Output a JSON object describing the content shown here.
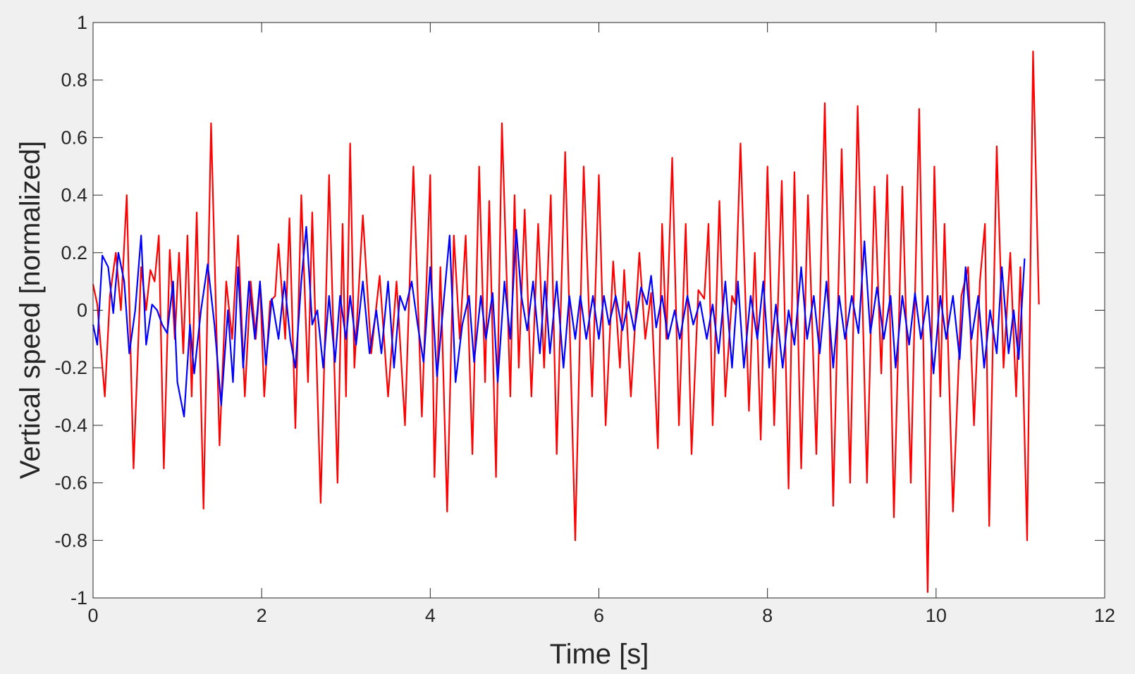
{
  "chart_data": {
    "type": "line",
    "xlabel": "Time [s]",
    "ylabel": "Vertical speed [normalized]",
    "xlim": [
      0,
      12
    ],
    "xticks": [
      0,
      2,
      4,
      6,
      8,
      10,
      12
    ],
    "ylim": [
      -1,
      1
    ],
    "yticks": [
      -1,
      -0.8,
      -0.6,
      -0.4,
      -0.2,
      0,
      0.2,
      0.4,
      0.6,
      0.8,
      1
    ],
    "series": [
      {
        "color": "#ff0000",
        "x": [
          0,
          0.05,
          0.14,
          0.2,
          0.27,
          0.33,
          0.4,
          0.48,
          0.57,
          0.63,
          0.68,
          0.73,
          0.78,
          0.84,
          0.91,
          0.97,
          1.02,
          1.07,
          1.12,
          1.17,
          1.23,
          1.31,
          1.4,
          1.5,
          1.58,
          1.65,
          1.72,
          1.8,
          1.87,
          1.93,
          1.98,
          2.03,
          2.1,
          2.16,
          2.2,
          2.28,
          2.33,
          2.4,
          2.47,
          2.55,
          2.6,
          2.7,
          2.8,
          2.9,
          2.96,
          3.0,
          3.05,
          3.1,
          3.2,
          3.3,
          3.4,
          3.5,
          3.6,
          3.7,
          3.8,
          3.9,
          4.0,
          4.05,
          4.12,
          4.2,
          4.28,
          4.35,
          4.42,
          4.5,
          4.58,
          4.65,
          4.7,
          4.78,
          4.85,
          4.95,
          5.0,
          5.05,
          5.12,
          5.2,
          5.28,
          5.35,
          5.43,
          5.5,
          5.6,
          5.72,
          5.82,
          5.92,
          6.0,
          6.08,
          6.17,
          6.25,
          6.3,
          6.38,
          6.48,
          6.55,
          6.62,
          6.7,
          6.75,
          6.8,
          6.87,
          6.95,
          7.03,
          7.1,
          7.18,
          7.25,
          7.3,
          7.35,
          7.43,
          7.5,
          7.58,
          7.62,
          7.68,
          7.78,
          7.85,
          7.92,
          8.0,
          8.08,
          8.17,
          8.25,
          8.32,
          8.4,
          8.48,
          8.58,
          8.68,
          8.78,
          8.88,
          8.98,
          9.07,
          9.18,
          9.27,
          9.35,
          9.42,
          9.5,
          9.6,
          9.7,
          9.8,
          9.9,
          9.98,
          10.05,
          10.1,
          10.2,
          10.3,
          10.38,
          10.45,
          10.52,
          10.58,
          10.63,
          10.72,
          10.8,
          10.88,
          10.95,
          11.0,
          11.08,
          11.15,
          11.22
        ],
        "values": [
          0.09,
          0.02,
          -0.3,
          0.05,
          0.2,
          0.0,
          0.4,
          -0.55,
          0.15,
          0.0,
          0.14,
          0.1,
          0.26,
          -0.55,
          0.21,
          -0.1,
          0.2,
          -0.15,
          0.26,
          -0.3,
          0.34,
          -0.69,
          0.65,
          -0.47,
          0.1,
          -0.1,
          0.26,
          -0.3,
          0.1,
          -0.1,
          0.1,
          -0.3,
          0.03,
          0.05,
          0.23,
          -0.1,
          0.32,
          -0.41,
          0.4,
          -0.25,
          0.34,
          -0.67,
          0.47,
          -0.6,
          0.3,
          -0.3,
          0.58,
          -0.2,
          0.33,
          -0.15,
          0.12,
          -0.3,
          0.1,
          -0.4,
          0.5,
          -0.37,
          0.47,
          -0.58,
          0.15,
          -0.7,
          0.26,
          -0.1,
          0.26,
          -0.5,
          0.5,
          -0.25,
          0.38,
          -0.58,
          0.65,
          -0.3,
          0.4,
          -0.2,
          0.35,
          -0.3,
          0.3,
          -0.2,
          0.4,
          -0.5,
          0.55,
          -0.8,
          0.5,
          -0.3,
          0.47,
          -0.4,
          0.17,
          -0.2,
          0.14,
          -0.3,
          0.2,
          -0.1,
          0.06,
          -0.48,
          0.3,
          -0.1,
          0.53,
          -0.4,
          0.3,
          -0.5,
          0.07,
          0.04,
          0.3,
          -0.4,
          0.38,
          -0.3,
          0.05,
          0.02,
          0.58,
          -0.35,
          0.2,
          -0.45,
          0.5,
          -0.4,
          0.45,
          -0.62,
          0.48,
          -0.55,
          0.4,
          -0.5,
          0.72,
          -0.68,
          0.56,
          -0.6,
          0.71,
          -0.6,
          0.43,
          -0.22,
          0.47,
          -0.72,
          0.43,
          -0.6,
          0.7,
          -0.98,
          0.5,
          -0.3,
          0.3,
          -0.7,
          0.05,
          0.15,
          -0.4,
          0.1,
          0.3,
          -0.75,
          0.57,
          -0.2,
          0.2,
          -0.3,
          0.15,
          -0.8,
          0.9,
          0.02
        ]
      },
      {
        "color": "#0000ff",
        "x": [
          0,
          0.05,
          0.11,
          0.18,
          0.24,
          0.3,
          0.37,
          0.43,
          0.5,
          0.57,
          0.63,
          0.7,
          0.76,
          0.82,
          0.88,
          0.95,
          1.0,
          1.08,
          1.15,
          1.2,
          1.28,
          1.36,
          1.44,
          1.52,
          1.6,
          1.66,
          1.72,
          1.78,
          1.85,
          1.92,
          1.98,
          2.05,
          2.12,
          2.2,
          2.27,
          2.34,
          2.4,
          2.47,
          2.53,
          2.6,
          2.66,
          2.73,
          2.8,
          2.87,
          2.93,
          3.0,
          3.05,
          3.12,
          3.2,
          3.28,
          3.36,
          3.42,
          3.5,
          3.57,
          3.64,
          3.7,
          3.78,
          3.85,
          3.92,
          4.0,
          4.08,
          4.15,
          4.23,
          4.3,
          4.38,
          4.46,
          4.52,
          4.6,
          4.66,
          4.74,
          4.8,
          4.88,
          4.95,
          5.02,
          5.08,
          5.15,
          5.22,
          5.3,
          5.36,
          5.42,
          5.5,
          5.58,
          5.65,
          5.72,
          5.78,
          5.85,
          5.93,
          6.0,
          6.06,
          6.12,
          6.2,
          6.28,
          6.35,
          6.42,
          6.5,
          6.57,
          6.62,
          6.68,
          6.75,
          6.82,
          6.9,
          6.96,
          7.05,
          7.12,
          7.2,
          7.28,
          7.35,
          7.42,
          7.5,
          7.58,
          7.65,
          7.72,
          7.8,
          7.88,
          7.95,
          8.02,
          8.1,
          8.18,
          8.25,
          8.32,
          8.4,
          8.47,
          8.55,
          8.62,
          8.7,
          8.78,
          8.85,
          8.92,
          9.0,
          9.08,
          9.15,
          9.22,
          9.3,
          9.38,
          9.46,
          9.52,
          9.6,
          9.68,
          9.75,
          9.82,
          9.9,
          9.97,
          10.05,
          10.12,
          10.2,
          10.28,
          10.35,
          10.42,
          10.5,
          10.57,
          10.64,
          10.72,
          10.78,
          10.86,
          10.92,
          10.98,
          11.05
        ],
        "values": [
          -0.05,
          -0.12,
          0.19,
          0.15,
          -0.01,
          0.2,
          0.1,
          -0.15,
          0.0,
          0.26,
          -0.12,
          0.02,
          0.0,
          -0.05,
          -0.08,
          0.1,
          -0.25,
          -0.37,
          -0.05,
          -0.22,
          0.0,
          0.16,
          -0.05,
          -0.33,
          0.0,
          -0.25,
          0.15,
          -0.2,
          0.1,
          -0.1,
          0.1,
          -0.19,
          0.04,
          -0.1,
          0.1,
          -0.1,
          -0.2,
          0.1,
          0.29,
          -0.05,
          0.0,
          -0.2,
          0.05,
          -0.18,
          0.05,
          -0.1,
          0.05,
          -0.12,
          0.1,
          -0.15,
          0.0,
          -0.15,
          0.1,
          -0.2,
          0.05,
          0.0,
          0.1,
          -0.05,
          -0.18,
          0.15,
          -0.23,
          0.0,
          0.26,
          -0.25,
          -0.05,
          0.05,
          -0.18,
          0.05,
          -0.1,
          0.06,
          -0.25,
          0.1,
          -0.1,
          0.28,
          0.05,
          -0.07,
          0.1,
          -0.15,
          0.1,
          -0.15,
          0.1,
          -0.2,
          0.05,
          -0.1,
          0.05,
          -0.1,
          0.05,
          -0.1,
          0.05,
          -0.05,
          0.05,
          -0.07,
          0.03,
          -0.07,
          0.08,
          0.02,
          0.12,
          -0.06,
          0.05,
          -0.1,
          0.0,
          -0.1,
          0.05,
          -0.05,
          0.03,
          -0.1,
          0.02,
          -0.15,
          0.1,
          -0.2,
          0.1,
          -0.2,
          0.05,
          -0.1,
          0.1,
          -0.2,
          0.02,
          -0.2,
          0.0,
          -0.12,
          0.15,
          -0.1,
          0.05,
          -0.15,
          0.1,
          -0.2,
          0.05,
          -0.1,
          0.05,
          -0.08,
          0.24,
          -0.08,
          0.08,
          -0.1,
          0.05,
          -0.2,
          0.05,
          -0.12,
          0.06,
          -0.1,
          0.05,
          -0.22,
          0.05,
          -0.1,
          0.05,
          -0.17,
          0.15,
          -0.1,
          0.05,
          -0.2,
          0.0,
          -0.15,
          0.15,
          -0.15,
          0.0,
          -0.17,
          0.18
        ]
      }
    ]
  }
}
